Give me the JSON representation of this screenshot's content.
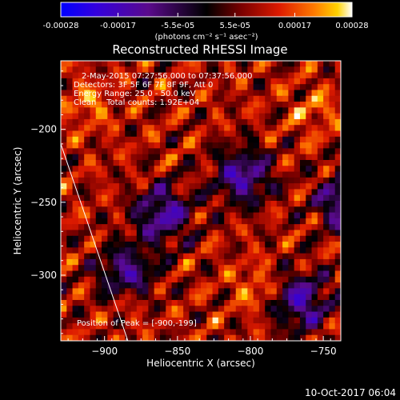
{
  "chart_data": {
    "type": "heatmap",
    "title": "Reconstructed RHESSI Image",
    "colorbar": {
      "ticks": [
        "-0.00028",
        "-0.00017",
        "-5.5e-05",
        "5.5e-05",
        "0.00017",
        "0.00028"
      ],
      "tick_values": [
        -0.00028,
        -0.00017,
        -5.5e-05,
        5.5e-05,
        0.00017,
        0.00028
      ],
      "range": [
        -0.00028,
        0.00028
      ],
      "unit_label": "(photons cm⁻² s⁻¹ asec⁻²)"
    },
    "xlabel": "Heliocentric X (arcsec)",
    "ylabel": "Heliocentric Y (arcsec)",
    "xlim": [
      -930,
      -738
    ],
    "ylim": [
      -345,
      -153
    ],
    "xticks": [
      -900,
      -850,
      -800,
      -750
    ],
    "xtick_labels": [
      "−900",
      "−850",
      "−800",
      "−750"
    ],
    "yticks": [
      -200,
      -250,
      -300
    ],
    "ytick_labels": [
      "−200",
      "−250",
      "−300"
    ],
    "annotations": [
      "2-May-2015 07:27:56.000 to 07:37:56.000",
      "Detectors: 3F 5F 6F 7F 8F 9F, Att 0",
      "Energy Range: 25.0 - 50.0 keV",
      "Clean    Total counts: 1.92E+04"
    ],
    "peak_label": "Position of Peak = [-900,-199]",
    "peak_position": [
      -900,
      -199
    ],
    "limb_line": {
      "x": [
        -930,
        -884
      ],
      "y": [
        -210,
        -345
      ]
    },
    "minima": [
      {
        "x": -805,
        "y": -232
      },
      {
        "x": -860,
        "y": -258
      },
      {
        "x": -885,
        "y": -300
      },
      {
        "x": -765,
        "y": -318
      },
      {
        "x": -735,
        "y": -250
      }
    ],
    "grid": false,
    "legend": "none"
  },
  "footer": {
    "timestamp": "10-Oct-2017 06:04"
  }
}
